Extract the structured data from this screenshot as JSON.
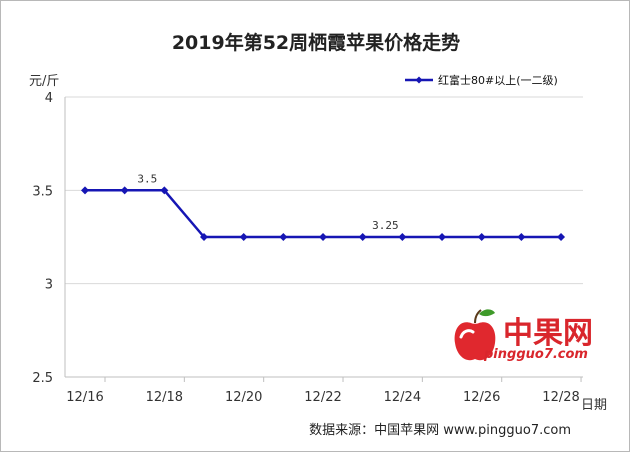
{
  "chart_data": {
    "type": "line",
    "title": "2019年第52周栖霞苹果价格走势",
    "ylabel": "元/斤",
    "xlabel": "日期",
    "ylim": [
      2.5,
      4
    ],
    "yticks": [
      "4",
      "3.5",
      "3",
      "2.5"
    ],
    "x": [
      "12/16",
      "12/17",
      "12/18",
      "12/19",
      "12/20",
      "12/21",
      "12/22",
      "12/23",
      "12/24",
      "12/25",
      "12/26",
      "12/27",
      "12/28"
    ],
    "xtick_labels": [
      "12/16",
      "12/18",
      "12/20",
      "12/22",
      "12/24",
      "12/26",
      "12/28"
    ],
    "series": [
      {
        "name": "红富士80#以上(一二级)",
        "values": [
          3.5,
          3.5,
          3.5,
          3.25,
          3.25,
          3.25,
          3.25,
          3.25,
          3.25,
          3.25,
          3.25,
          3.25,
          3.25
        ],
        "color": "#1616b4"
      }
    ],
    "data_labels": [
      {
        "index": 2,
        "text": "3.5"
      },
      {
        "index": 8,
        "text": "3.25"
      }
    ],
    "grid": "horizontal",
    "legend_position": "top-right"
  },
  "logo": {
    "name": "中果网",
    "url": "pingguo7.com",
    "icon": "apple-icon",
    "color": "#d9262c"
  },
  "source": "数据来源：中国苹果网 www.pingguo7.com"
}
